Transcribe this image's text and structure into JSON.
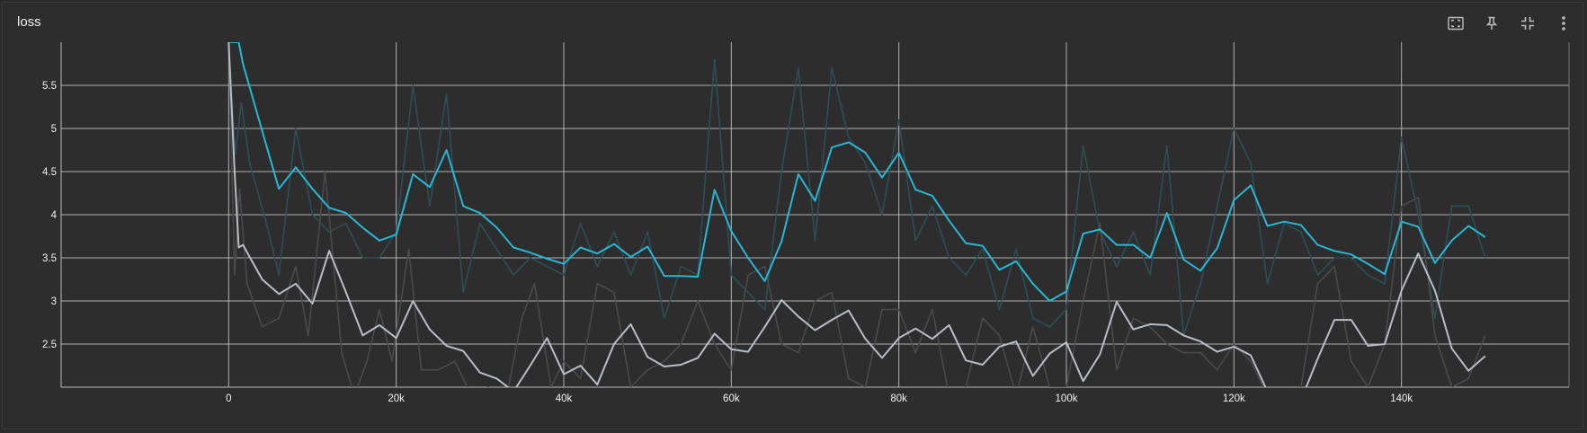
{
  "card": {
    "title": "loss"
  },
  "toolbar": [
    {
      "name": "fit-domain-icon"
    },
    {
      "name": "pin-icon"
    },
    {
      "name": "collapse-icon"
    },
    {
      "name": "more-vert-icon"
    }
  ],
  "chart_data": {
    "type": "line",
    "title": "loss",
    "xlabel": "",
    "ylabel": "",
    "xlim": [
      -20000,
      160000
    ],
    "ylim": [
      2.0,
      6.0
    ],
    "x_ticks": [
      "0",
      "20k",
      "40k",
      "60k",
      "80k",
      "100k",
      "120k",
      "140k"
    ],
    "y_ticks": [
      "2.5",
      "3",
      "3.5",
      "4",
      "4.5",
      "5",
      "5.5"
    ],
    "grid": true,
    "series": [
      {
        "color": "#2f4d54",
        "x": [
          0,
          800,
          1500,
          2500,
          4500,
          6000,
          8000,
          10000,
          12000,
          14000,
          16000,
          18000,
          20000,
          22000,
          24000,
          26000,
          28000,
          30000,
          32000,
          34000,
          36000,
          38000,
          40000,
          42000,
          44000,
          46000,
          48000,
          50000,
          52000,
          54000,
          56000,
          58000,
          60000,
          62000,
          64000,
          66000,
          68000,
          70000,
          72000,
          74000,
          76000,
          78000,
          80000,
          82000,
          84000,
          86000,
          88000,
          90000,
          92000,
          94000,
          96000,
          98000,
          100000,
          102000,
          104000,
          106000,
          108000,
          110000,
          112000,
          114000,
          116000,
          118000,
          120000,
          122000,
          124000,
          126000,
          128000,
          130000,
          132000,
          134000,
          136000,
          138000,
          140000,
          142000,
          144000,
          146000,
          148000,
          150000
        ],
        "values": [
          6.0,
          4.7,
          5.3,
          4.6,
          3.9,
          3.3,
          5.0,
          4.0,
          3.8,
          3.9,
          3.5,
          3.5,
          3.8,
          5.5,
          4.1,
          5.4,
          3.1,
          3.9,
          3.6,
          3.3,
          3.5,
          3.4,
          3.3,
          3.9,
          3.4,
          3.8,
          3.3,
          3.8,
          2.8,
          3.4,
          3.3,
          5.8,
          3.3,
          3.1,
          2.9,
          4.5,
          5.7,
          3.7,
          5.7,
          4.9,
          4.6,
          4.0,
          5.1,
          3.7,
          4.1,
          3.5,
          3.3,
          3.6,
          2.9,
          3.6,
          2.8,
          2.7,
          2.9,
          4.8,
          3.8,
          3.4,
          3.8,
          3.3,
          4.8,
          2.6,
          3.2,
          4.1,
          5.0,
          4.6,
          3.2,
          3.9,
          3.8,
          3.3,
          3.5,
          3.5,
          3.3,
          3.2,
          4.9,
          4.0,
          2.8,
          4.1,
          4.1,
          3.5
        ]
      },
      {
        "color": "#4a4a4a",
        "x": [
          0,
          700,
          1300,
          2200,
          4000,
          6000,
          8000,
          9500,
          11500,
          13500,
          15000,
          16500,
          18000,
          19500,
          21500,
          23000,
          25000,
          27000,
          29000,
          31000,
          33000,
          35000,
          36500,
          38500,
          40000,
          42000,
          44000,
          46000,
          48000,
          50000,
          52000,
          54000,
          56000,
          58000,
          60000,
          62000,
          64000,
          66000,
          68000,
          70000,
          72000,
          74000,
          76000,
          78000,
          80000,
          82000,
          84000,
          86000,
          88000,
          90000,
          92000,
          94000,
          96000,
          98000,
          100000,
          102000,
          104000,
          106000,
          108000,
          110000,
          112000,
          114000,
          116000,
          118000,
          120000,
          122000,
          124000,
          126000,
          128000,
          130000,
          132000,
          134000,
          136000,
          138000,
          140000,
          142000,
          144000,
          146000,
          148000,
          150000
        ],
        "values": [
          6.0,
          3.3,
          4.3,
          3.2,
          2.7,
          2.8,
          3.4,
          2.6,
          4.5,
          2.4,
          1.9,
          2.3,
          2.9,
          2.3,
          3.6,
          2.2,
          2.2,
          2.3,
          1.9,
          2.0,
          1.8,
          2.8,
          3.2,
          2.0,
          2.3,
          2.1,
          3.2,
          3.1,
          2.0,
          2.2,
          2.3,
          2.5,
          3.0,
          2.5,
          2.2,
          3.3,
          3.4,
          2.5,
          2.4,
          3.0,
          3.1,
          2.1,
          2.0,
          2.9,
          2.9,
          2.4,
          2.9,
          1.9,
          2.0,
          2.8,
          2.6,
          1.9,
          2.7,
          2.0,
          2.0,
          3.0,
          3.9,
          2.2,
          2.8,
          2.7,
          2.5,
          2.4,
          2.4,
          2.2,
          2.5,
          2.3,
          1.9,
          1.8,
          2.0,
          3.2,
          3.4,
          2.3,
          2.0,
          2.5,
          4.1,
          4.2,
          2.6,
          2.0,
          2.1,
          2.6
        ]
      },
      {
        "color": "#29b6d3",
        "x": [
          0,
          800,
          1200,
          1700,
          4500,
          6000,
          8000,
          10000,
          12000,
          14000,
          16000,
          18000,
          20000,
          22000,
          24000,
          26000,
          28000,
          30000,
          32000,
          34000,
          36000,
          38000,
          40000,
          42000,
          44000,
          46000,
          48000,
          50000,
          52000,
          54000,
          56000,
          58000,
          60000,
          62000,
          64000,
          66000,
          68000,
          70000,
          72000,
          74000,
          76000,
          78000,
          80000,
          82000,
          84000,
          86000,
          88000,
          90000,
          92000,
          94000,
          96000,
          98000,
          100000,
          102000,
          104000,
          106000,
          108000,
          110000,
          112000,
          114000,
          116000,
          118000,
          120000,
          122000,
          124000,
          126000,
          128000,
          130000,
          132000,
          134000,
          136000,
          138000,
          140000,
          142000,
          144000,
          146000,
          148000,
          150000
        ],
        "values": [
          6.0,
          6.0,
          6.0,
          5.75,
          4.8,
          4.3,
          4.55,
          4.3,
          4.08,
          4.02,
          3.85,
          3.7,
          3.77,
          4.47,
          4.32,
          4.75,
          4.1,
          4.02,
          3.85,
          3.62,
          3.56,
          3.49,
          3.43,
          3.62,
          3.55,
          3.66,
          3.51,
          3.63,
          3.29,
          3.29,
          3.28,
          4.29,
          3.81,
          3.5,
          3.23,
          3.69,
          4.47,
          4.16,
          4.78,
          4.84,
          4.72,
          4.43,
          4.72,
          4.29,
          4.22,
          3.93,
          3.67,
          3.64,
          3.36,
          3.46,
          3.2,
          3.0,
          3.11,
          3.78,
          3.83,
          3.65,
          3.65,
          3.5,
          4.02,
          3.48,
          3.35,
          3.61,
          4.17,
          4.34,
          3.87,
          3.92,
          3.88,
          3.65,
          3.58,
          3.54,
          3.43,
          3.31,
          3.92,
          3.86,
          3.44,
          3.7,
          3.87,
          3.74
        ]
      },
      {
        "color": "#b9bec6",
        "x": [
          0,
          700,
          1200,
          1700,
          4000,
          6000,
          8000,
          10000,
          12000,
          14000,
          16000,
          18000,
          20000,
          22000,
          24000,
          26000,
          28000,
          30000,
          32000,
          34000,
          36000,
          38000,
          40000,
          42000,
          44000,
          46000,
          48000,
          50000,
          52000,
          54000,
          56000,
          58000,
          60000,
          62000,
          64000,
          66000,
          68000,
          70000,
          72000,
          74000,
          76000,
          78000,
          80000,
          82000,
          84000,
          86000,
          88000,
          90000,
          92000,
          94000,
          96000,
          98000,
          100000,
          102000,
          104000,
          106000,
          108000,
          110000,
          112000,
          114000,
          116000,
          118000,
          120000,
          122000,
          124000,
          126000,
          128000,
          130000,
          132000,
          134000,
          136000,
          138000,
          140000,
          142000,
          144000,
          146000,
          148000,
          150000
        ],
        "values": [
          6.0,
          4.5,
          3.62,
          3.65,
          3.25,
          3.08,
          3.2,
          2.97,
          3.58,
          3.1,
          2.6,
          2.72,
          2.57,
          3.0,
          2.67,
          2.48,
          2.42,
          2.17,
          2.1,
          1.95,
          2.25,
          2.57,
          2.15,
          2.25,
          2.03,
          2.5,
          2.73,
          2.35,
          2.24,
          2.26,
          2.34,
          2.62,
          2.44,
          2.41,
          2.7,
          3.01,
          2.82,
          2.66,
          2.78,
          2.89,
          2.56,
          2.34,
          2.57,
          2.68,
          2.56,
          2.72,
          2.31,
          2.26,
          2.47,
          2.53,
          2.13,
          2.39,
          2.52,
          2.07,
          2.38,
          2.99,
          2.67,
          2.73,
          2.72,
          2.6,
          2.53,
          2.41,
          2.47,
          2.37,
          1.95,
          1.8,
          1.85,
          2.33,
          2.78,
          2.78,
          2.48,
          2.5,
          3.12,
          3.55,
          3.12,
          2.45,
          2.19,
          2.36
        ]
      }
    ]
  }
}
